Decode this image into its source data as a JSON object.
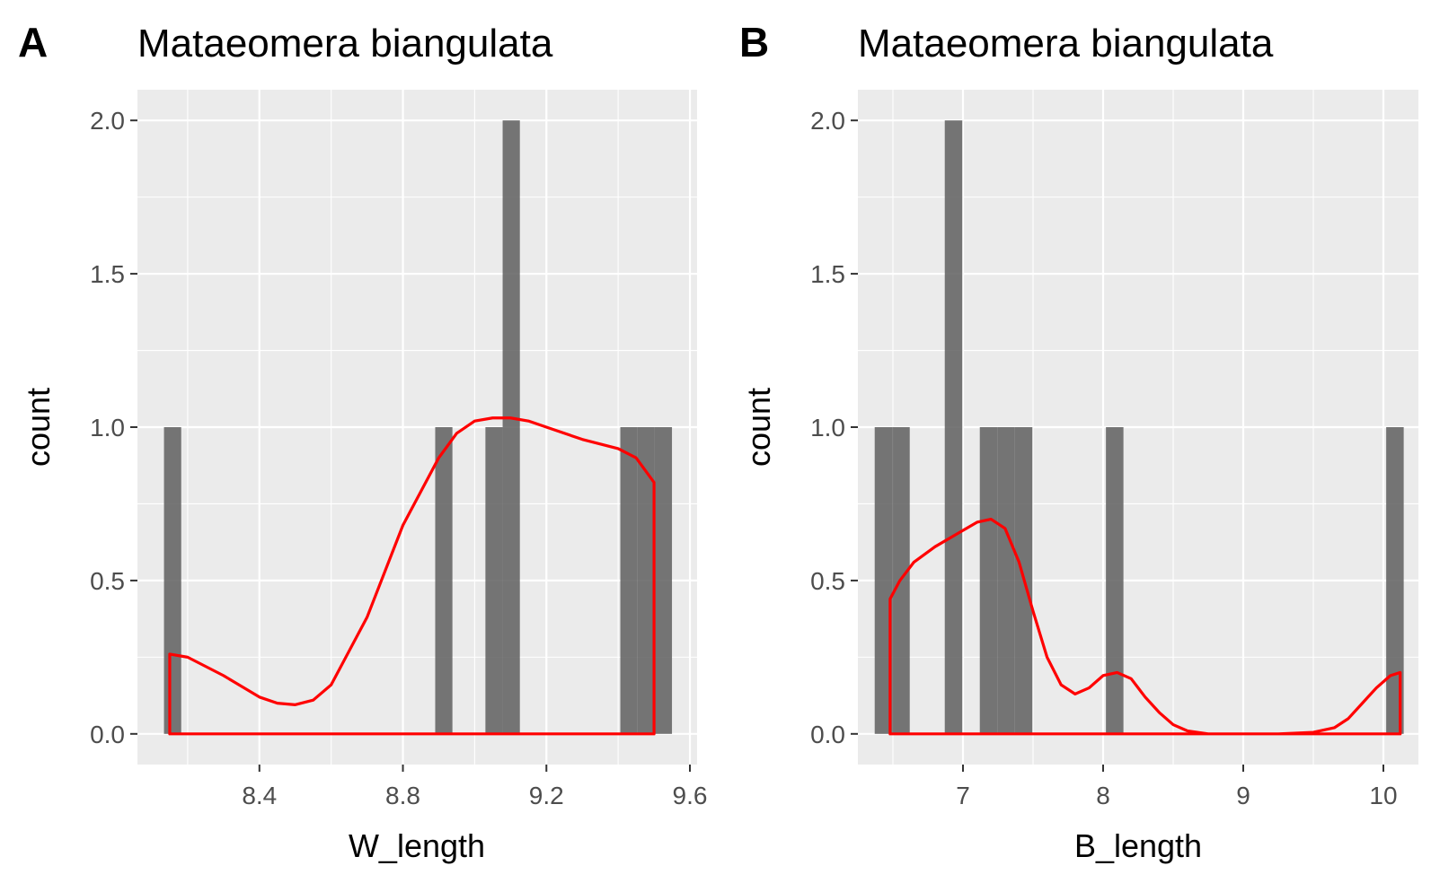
{
  "colors": {
    "bar": "#595959",
    "density": "#ff0000",
    "panel_bg": "#ebebeb",
    "grid": "#ffffff"
  },
  "chart_data": [
    {
      "type": "bar",
      "panel_tag": "A",
      "title": "Mataeomera biangulata",
      "xlabel": "W_length",
      "ylabel": "count",
      "xlim": [
        8.06,
        9.62
      ],
      "ylim": [
        -0.1,
        2.1
      ],
      "xticks": [
        8.4,
        8.8,
        9.2,
        9.6
      ],
      "xtick_labels": [
        "8.4",
        "8.8",
        "9.2",
        "9.6"
      ],
      "yticks": [
        0,
        0.5,
        1,
        1.5,
        2
      ],
      "ytick_labels": [
        "0.0",
        "0.5",
        "1.0",
        "1.5",
        "2.0"
      ],
      "grid": true,
      "bins": [
        {
          "x0": 8.134,
          "x1": 8.182,
          "count": 1
        },
        {
          "x0": 8.89,
          "x1": 8.938,
          "count": 1
        },
        {
          "x0": 9.03,
          "x1": 9.078,
          "count": 1
        },
        {
          "x0": 9.078,
          "x1": 9.126,
          "count": 2
        },
        {
          "x0": 9.406,
          "x1": 9.454,
          "count": 1
        },
        {
          "x0": 9.454,
          "x1": 9.502,
          "count": 1
        },
        {
          "x0": 9.502,
          "x1": 9.55,
          "count": 1
        }
      ],
      "density": {
        "x": [
          8.15,
          8.2,
          8.3,
          8.4,
          8.45,
          8.5,
          8.55,
          8.6,
          8.7,
          8.8,
          8.85,
          8.9,
          8.95,
          9.0,
          9.05,
          9.1,
          9.15,
          9.2,
          9.3,
          9.4,
          9.45,
          9.5
        ],
        "y": [
          0.26,
          0.25,
          0.19,
          0.12,
          0.1,
          0.095,
          0.11,
          0.16,
          0.38,
          0.68,
          0.79,
          0.9,
          0.98,
          1.02,
          1.03,
          1.03,
          1.02,
          1.0,
          0.96,
          0.93,
          0.9,
          0.82
        ]
      }
    },
    {
      "type": "bar",
      "panel_tag": "B",
      "title": "Mataeomera biangulata",
      "xlabel": "B_length",
      "ylabel": "count",
      "xlim": [
        6.25,
        10.25
      ],
      "ylim": [
        -0.1,
        2.1
      ],
      "xticks": [
        7,
        8,
        9,
        10
      ],
      "xtick_labels": [
        "7",
        "8",
        "9",
        "10"
      ],
      "yticks": [
        0,
        0.5,
        1,
        1.5,
        2
      ],
      "ytick_labels": [
        "0.0",
        "0.5",
        "1.0",
        "1.5",
        "2.0"
      ],
      "grid": true,
      "bins": [
        {
          "x0": 6.37,
          "x1": 6.495,
          "count": 1
        },
        {
          "x0": 6.495,
          "x1": 6.62,
          "count": 1
        },
        {
          "x0": 6.87,
          "x1": 6.995,
          "count": 2
        },
        {
          "x0": 7.12,
          "x1": 7.245,
          "count": 1
        },
        {
          "x0": 7.245,
          "x1": 7.37,
          "count": 1
        },
        {
          "x0": 7.37,
          "x1": 7.495,
          "count": 1
        },
        {
          "x0": 8.02,
          "x1": 8.145,
          "count": 1
        },
        {
          "x0": 10.02,
          "x1": 10.145,
          "count": 1
        }
      ],
      "density": {
        "x": [
          6.48,
          6.55,
          6.65,
          6.8,
          6.95,
          7.1,
          7.2,
          7.3,
          7.4,
          7.5,
          7.6,
          7.7,
          7.8,
          7.9,
          8.0,
          8.1,
          8.2,
          8.3,
          8.4,
          8.5,
          8.6,
          8.75,
          9.0,
          9.25,
          9.5,
          9.65,
          9.75,
          9.85,
          9.95,
          10.05,
          10.12
        ],
        "y": [
          0.44,
          0.5,
          0.56,
          0.61,
          0.65,
          0.69,
          0.7,
          0.67,
          0.56,
          0.4,
          0.25,
          0.16,
          0.13,
          0.15,
          0.19,
          0.2,
          0.18,
          0.12,
          0.07,
          0.03,
          0.01,
          0.0,
          0.0,
          0.0,
          0.005,
          0.02,
          0.05,
          0.1,
          0.15,
          0.19,
          0.2
        ]
      }
    }
  ]
}
